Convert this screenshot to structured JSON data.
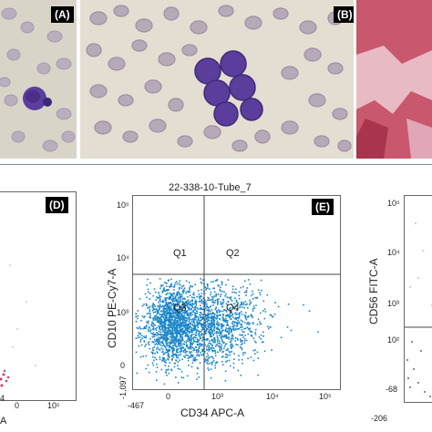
{
  "panels": {
    "A": {
      "label": "(A)"
    },
    "B": {
      "label": "(B)"
    },
    "C": {},
    "D": {
      "label": "(D)",
      "ytick": "4",
      "xticks": [
        "0",
        "10⁵"
      ],
      "xaxis": "A"
    },
    "E": {
      "label": "(E)",
      "title": "22-338-10-Tube_7",
      "ylabel": "CD10 PE-Cy7-A",
      "xlabel": "CD34 APC-A",
      "quadrants": [
        "Q1",
        "Q2",
        "Q3",
        "Q4"
      ],
      "yticks": [
        "10⁵",
        "10⁴",
        "10³",
        "0",
        "-1,097"
      ],
      "xticks": [
        "-467",
        "0",
        "10³",
        "10⁴",
        "10⁵"
      ]
    },
    "F": {
      "ylabel": "CD56 FITC-A",
      "yticks": [
        "10⁵",
        "10⁴",
        "10³",
        "10²",
        "-68"
      ],
      "xtick": "-206"
    }
  },
  "colors": {
    "dots": "#1a86c8",
    "tissue": "#b84a5e",
    "blood_bg": "#e3dcd0"
  }
}
